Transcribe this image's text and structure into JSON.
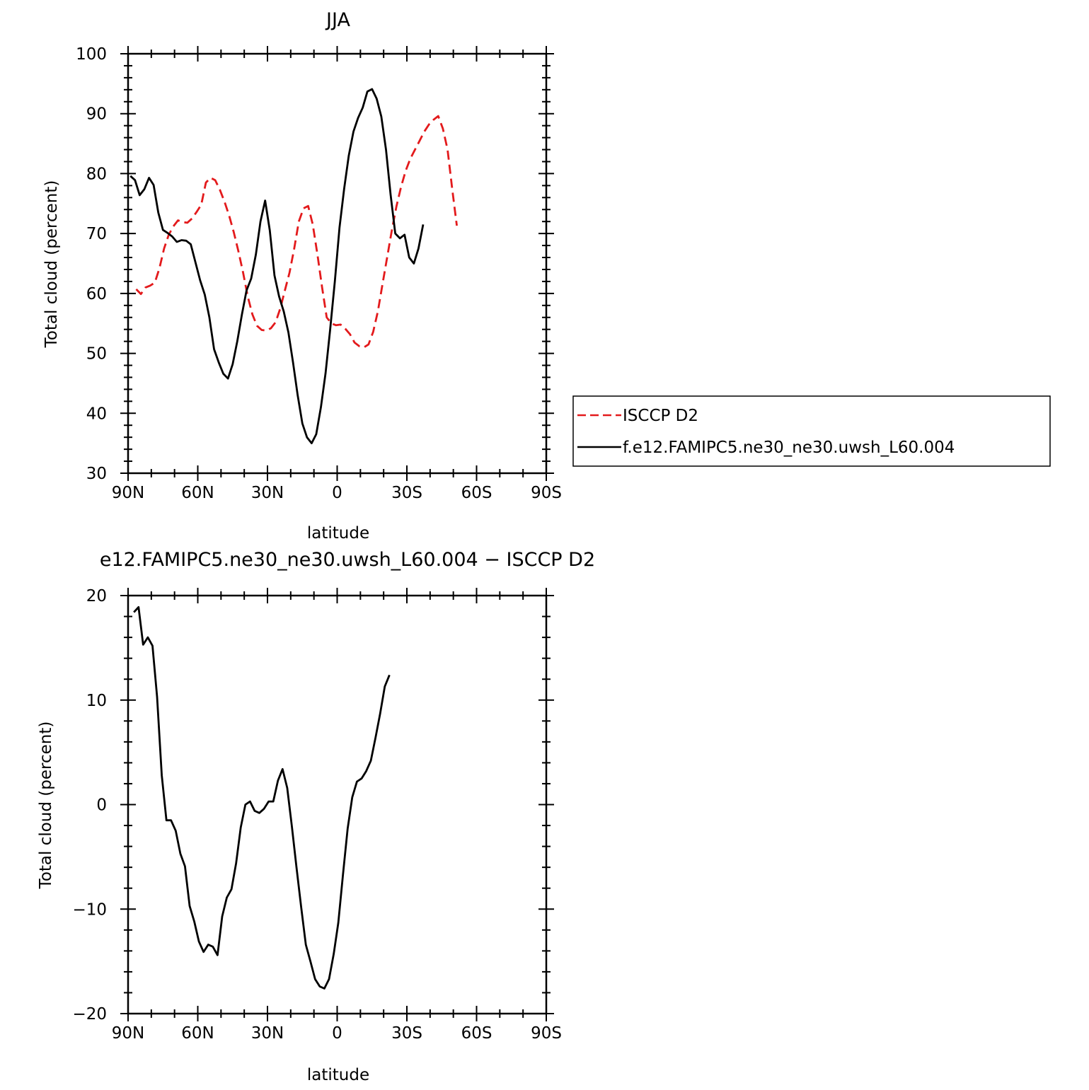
{
  "chart_data": [
    {
      "type": "line",
      "title": "JJA",
      "xlabel": "latitude",
      "ylabel": "Total cloud (percent)",
      "xlim": [
        90,
        -90
      ],
      "ylim": [
        30,
        100
      ],
      "x_ticks": [
        90,
        60,
        30,
        0,
        -30,
        -60,
        -90
      ],
      "x_tick_labels": [
        "90N",
        "60N",
        "30N",
        "0",
        "30S",
        "60S",
        "90S"
      ],
      "y_ticks": [
        30,
        40,
        50,
        60,
        70,
        80,
        90,
        100
      ],
      "y_tick_labels": [
        "30",
        "40",
        "50",
        "60",
        "70",
        "80",
        "90",
        "100"
      ],
      "legend_position": "right",
      "series": [
        {
          "name": "ISCCP D2",
          "color": "#e31a1c",
          "dash": "dashed",
          "points": [
            [
              86.5,
              60.7
            ],
            [
              84.5,
              59.9
            ],
            [
              82.5,
              61.0
            ],
            [
              80.5,
              61.3
            ],
            [
              78.5,
              61.8
            ],
            [
              76.5,
              64.2
            ],
            [
              74.5,
              67.5
            ],
            [
              72.5,
              69.8
            ],
            [
              70.5,
              71.2
            ],
            [
              68.5,
              72.2
            ],
            [
              66.5,
              71.9
            ],
            [
              64.5,
              71.8
            ],
            [
              62.5,
              72.5
            ],
            [
              60.5,
              73.6
            ],
            [
              58.5,
              74.8
            ],
            [
              56.5,
              78.5
            ],
            [
              54.5,
              79.3
            ],
            [
              52.5,
              78.9
            ],
            [
              50.5,
              77.3
            ],
            [
              48.5,
              75.3
            ],
            [
              46.5,
              73.0
            ],
            [
              44.5,
              70.2
            ],
            [
              42.5,
              67.0
            ],
            [
              40.5,
              63.5
            ],
            [
              38.5,
              59.5
            ],
            [
              36.5,
              56.5
            ],
            [
              34.5,
              54.6
            ],
            [
              32.5,
              53.9
            ],
            [
              30.5,
              53.8
            ],
            [
              28.5,
              54.2
            ],
            [
              26.5,
              55.2
            ],
            [
              24.5,
              57.5
            ],
            [
              22.5,
              60.5
            ],
            [
              20.5,
              63.5
            ],
            [
              18.5,
              67.5
            ],
            [
              16.5,
              72.0
            ],
            [
              14.5,
              74.2
            ],
            [
              12.5,
              74.6
            ],
            [
              10.5,
              71.5
            ],
            [
              8.5,
              66.5
            ],
            [
              6.5,
              61.0
            ],
            [
              4.5,
              56.0
            ],
            [
              2.5,
              55.0
            ],
            [
              0.5,
              54.7
            ],
            [
              -1.5,
              54.8
            ],
            [
              -3.5,
              54.1
            ],
            [
              -5.5,
              53.2
            ],
            [
              -7.5,
              51.8
            ],
            [
              -9.5,
              51.2
            ],
            [
              -11.5,
              51.0
            ],
            [
              -13.5,
              51.5
            ],
            [
              -15.5,
              53.6
            ],
            [
              -17.5,
              57.0
            ],
            [
              -19.5,
              61.5
            ],
            [
              -21.5,
              66.0
            ],
            [
              -23.5,
              70.5
            ],
            [
              -25.5,
              74.5
            ],
            [
              -27.5,
              77.8
            ],
            [
              -29.5,
              80.5
            ],
            [
              -31.5,
              82.5
            ],
            [
              -33.5,
              84.0
            ],
            [
              -35.5,
              85.5
            ],
            [
              -37.5,
              87.0
            ],
            [
              -39.5,
              88.2
            ],
            [
              -41.5,
              89.0
            ],
            [
              -43.5,
              89.6
            ],
            [
              -45.5,
              87.5
            ],
            [
              -47.5,
              84.0
            ],
            [
              -49.5,
              77.5
            ],
            [
              -51.5,
              71.3
            ]
          ]
        },
        {
          "name": "f.e12.FAMIPC5.ne30_ne30.uwsh_L60.004",
          "color": "#000000",
          "dash": "solid",
          "points": [
            [
              89,
              79.6
            ],
            [
              87,
              78.9
            ],
            [
              85,
              76.4
            ],
            [
              83,
              77.4
            ],
            [
              81,
              79.3
            ],
            [
              79,
              78.1
            ],
            [
              77,
              73.5
            ],
            [
              75,
              70.6
            ],
            [
              73,
              70.1
            ],
            [
              71,
              69.5
            ],
            [
              69,
              68.6
            ],
            [
              67,
              68.9
            ],
            [
              65,
              68.8
            ],
            [
              63,
              68.2
            ],
            [
              61,
              65.2
            ],
            [
              59,
              62.2
            ],
            [
              57,
              59.8
            ],
            [
              55,
              56.0
            ],
            [
              53,
              50.7
            ],
            [
              51,
              48.5
            ],
            [
              49,
              46.6
            ],
            [
              47,
              45.8
            ],
            [
              45,
              48.2
            ],
            [
              43,
              52.0
            ],
            [
              41,
              56.5
            ],
            [
              39,
              60.5
            ],
            [
              37,
              62.5
            ],
            [
              35,
              66.5
            ],
            [
              33,
              72.0
            ],
            [
              31,
              75.5
            ],
            [
              29,
              70.5
            ],
            [
              27,
              63.0
            ],
            [
              25,
              59.5
            ],
            [
              23,
              57.0
            ],
            [
              21,
              53.5
            ],
            [
              19,
              48.5
            ],
            [
              17,
              43.0
            ],
            [
              15,
              38.3
            ],
            [
              13,
              36.0
            ],
            [
              11,
              35.0
            ],
            [
              9,
              36.5
            ],
            [
              7,
              41.0
            ],
            [
              5,
              46.7
            ],
            [
              3,
              54.0
            ],
            [
              1,
              62.0
            ],
            [
              -1,
              71.0
            ],
            [
              -3,
              77.5
            ],
            [
              -5,
              83.0
            ],
            [
              -7,
              87.0
            ],
            [
              -9,
              89.3
            ],
            [
              -11,
              91.0
            ],
            [
              -13,
              93.7
            ],
            [
              -15,
              94.1
            ],
            [
              -17,
              92.5
            ],
            [
              -19,
              89.5
            ],
            [
              -21,
              84.0
            ],
            [
              -23,
              76.5
            ],
            [
              -25,
              70.0
            ],
            [
              -27,
              69.2
            ],
            [
              -29,
              69.8
            ],
            [
              -31,
              66.0
            ],
            [
              -33,
              65.0
            ],
            [
              -35,
              67.5
            ],
            [
              -37,
              71.5
            ]
          ]
        }
      ]
    },
    {
      "type": "line",
      "title": "e12.FAMIPC5.ne30_ne30.uwsh_L60.004 − ISCCP D2",
      "xlabel": "latitude",
      "ylabel": "Total cloud (percent)",
      "xlim": [
        90,
        -90
      ],
      "ylim": [
        -20,
        20
      ],
      "x_ticks": [
        90,
        60,
        30,
        0,
        -30,
        -60,
        -90
      ],
      "x_tick_labels": [
        "90N",
        "60N",
        "30N",
        "0",
        "30S",
        "60S",
        "90S"
      ],
      "y_ticks": [
        -20,
        -10,
        0,
        10,
        20
      ],
      "y_tick_labels": [
        "−20",
        "−10",
        "0",
        "10",
        "20"
      ],
      "series": [
        {
          "color": "#000000",
          "dash": "solid",
          "points": [
            [
              87.5,
              18.4
            ],
            [
              85.5,
              18.9
            ],
            [
              83.5,
              15.3
            ],
            [
              81.5,
              16.0
            ],
            [
              79.5,
              15.2
            ],
            [
              77.5,
              10.3
            ],
            [
              75.5,
              2.8
            ],
            [
              73.5,
              -1.5
            ],
            [
              71.5,
              -1.5
            ],
            [
              69.5,
              -2.5
            ],
            [
              67.5,
              -4.7
            ],
            [
              65.5,
              -5.9
            ],
            [
              63.5,
              -9.7
            ],
            [
              61.5,
              -11.2
            ],
            [
              59.5,
              -13.1
            ],
            [
              57.5,
              -14.1
            ],
            [
              55.5,
              -13.4
            ],
            [
              53.5,
              -13.6
            ],
            [
              51.5,
              -14.4
            ],
            [
              49.5,
              -10.7
            ],
            [
              47.5,
              -8.9
            ],
            [
              45.5,
              -8.1
            ],
            [
              43.5,
              -5.6
            ],
            [
              41.5,
              -2.2
            ],
            [
              39.5,
              0.0
            ],
            [
              37.5,
              0.3
            ],
            [
              35.5,
              -0.6
            ],
            [
              33.5,
              -0.8
            ],
            [
              31.5,
              -0.4
            ],
            [
              29.5,
              0.3
            ],
            [
              27.5,
              0.3
            ],
            [
              25.5,
              2.3
            ],
            [
              23.5,
              3.4
            ],
            [
              21.5,
              1.6
            ],
            [
              19.5,
              -2.1
            ],
            [
              17.5,
              -6.0
            ],
            [
              15.5,
              -9.8
            ],
            [
              13.5,
              -13.4
            ],
            [
              11.5,
              -15.0
            ],
            [
              9.5,
              -16.7
            ],
            [
              7.5,
              -17.4
            ],
            [
              5.5,
              -17.6
            ],
            [
              3.5,
              -16.7
            ],
            [
              1.5,
              -14.3
            ],
            [
              -0.5,
              -11.3
            ],
            [
              -2.5,
              -6.7
            ],
            [
              -4.5,
              -2.3
            ],
            [
              -6.5,
              0.7
            ],
            [
              -8.5,
              2.2
            ],
            [
              -10.5,
              2.5
            ],
            [
              -12.5,
              3.2
            ],
            [
              -14.5,
              4.2
            ],
            [
              -16.5,
              6.4
            ],
            [
              -18.5,
              8.7
            ],
            [
              -20.5,
              11.3
            ],
            [
              -22.5,
              12.4
            ]
          ]
        }
      ]
    }
  ]
}
